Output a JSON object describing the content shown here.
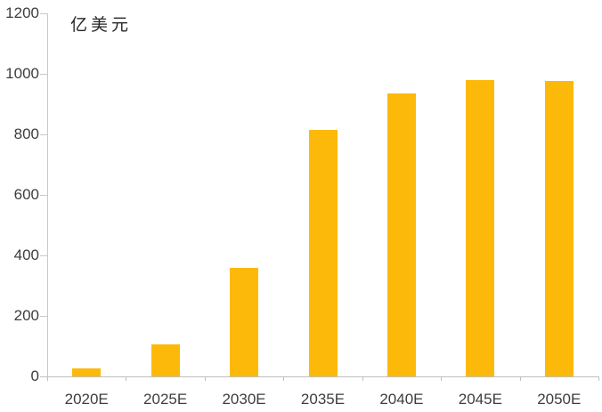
{
  "chart": {
    "unit_label": "亿美元",
    "bar_color": "#FDB90A",
    "axis_color": "#c9c9c9",
    "label_color": "#3d3d3d"
  },
  "chart_data": {
    "type": "bar",
    "title": "",
    "xlabel": "",
    "ylabel": "亿美元",
    "categories": [
      "2020E",
      "2025E",
      "2030E",
      "2035E",
      "2040E",
      "2045E",
      "2050E"
    ],
    "values": [
      25,
      105,
      360,
      815,
      935,
      980,
      976
    ],
    "ylim": [
      0,
      1200
    ],
    "yticks": [
      0,
      200,
      400,
      600,
      800,
      1000,
      1200
    ],
    "grid": false,
    "legend": "none",
    "bar_color": "#FDB90A"
  }
}
